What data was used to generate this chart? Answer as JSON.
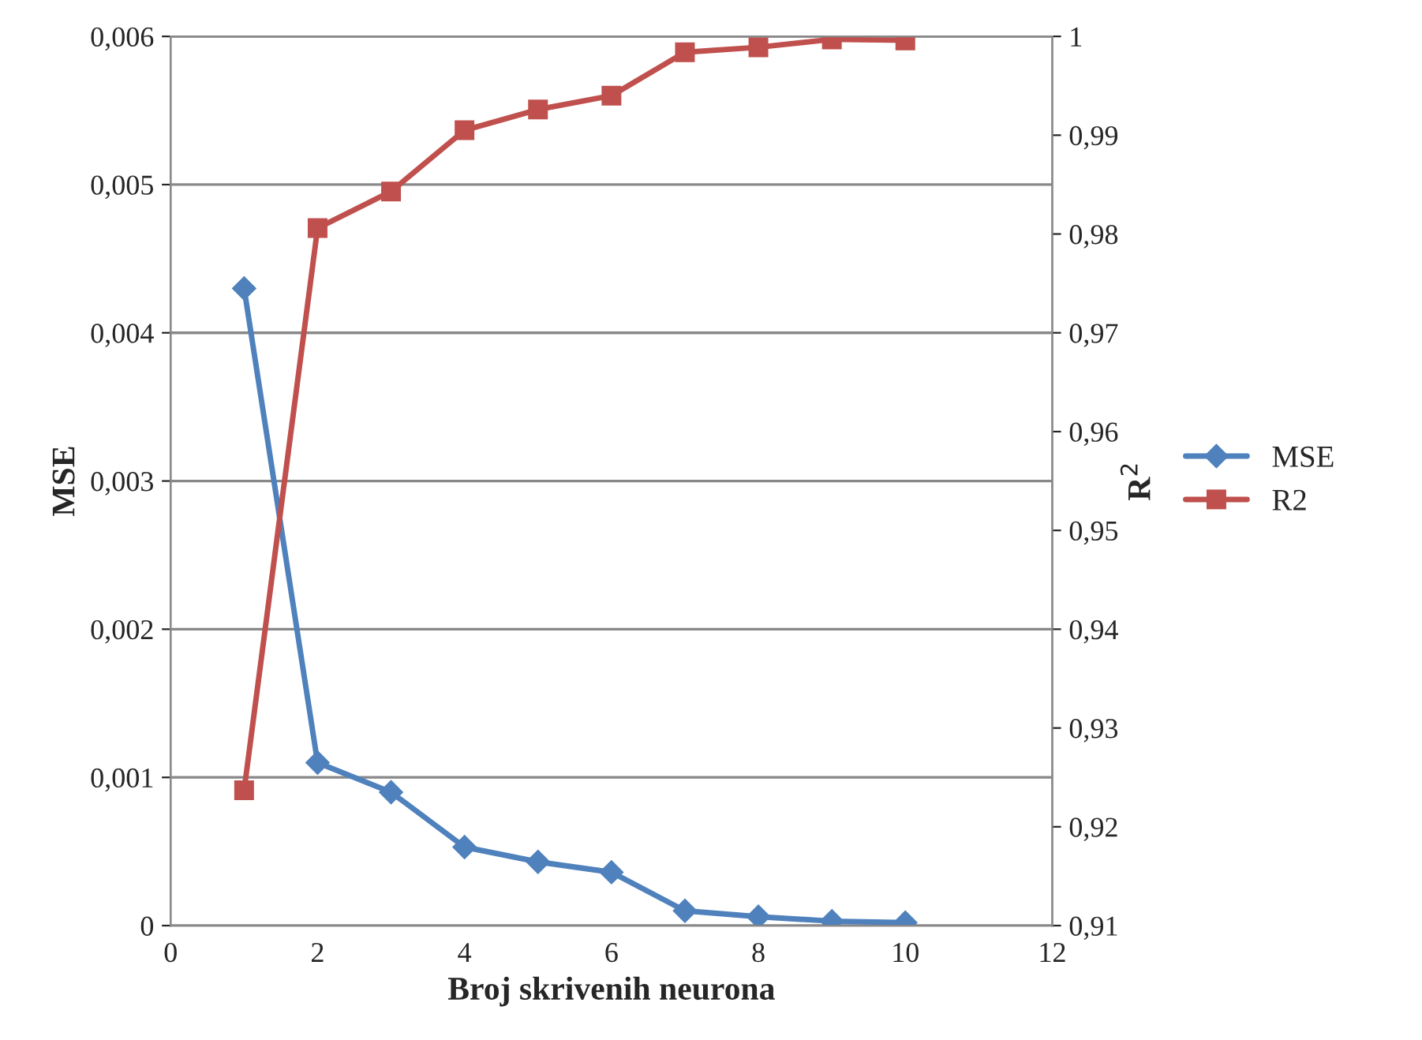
{
  "chart_data": {
    "type": "line",
    "xlabel": "Broj skrivenih neurona",
    "ylabel": "MSE",
    "y2label": "R$^{2}$",
    "x": [
      1,
      2,
      3,
      4,
      5,
      6,
      7,
      8,
      9,
      10
    ],
    "series": [
      {
        "name": "MSE",
        "color": "#4f81bd",
        "marker": "diamond",
        "values": [
          0.0043,
          0.0011,
          0.0009,
          0.00053,
          0.00043,
          0.00036,
          0.0001,
          6e-05,
          3e-05,
          2e-05
        ]
      },
      {
        "name": "R2",
        "color": "#c0504d",
        "marker": "square",
        "axis": "y2",
        "values": [
          0.9237,
          0.9806,
          0.9843,
          0.9905,
          0.9926,
          0.994,
          0.9984,
          0.9989,
          0.9997,
          0.9996
        ]
      }
    ],
    "xlim": [
      0,
      12
    ],
    "xticks": [
      0,
      2,
      4,
      6,
      8,
      10,
      12
    ],
    "ylim": [
      0,
      0.006
    ],
    "yticks": [
      0,
      {
        "value": 0.001,
        "label": "0,001"
      },
      {
        "value": 0.002,
        "label": "0,002"
      },
      {
        "value": 0.003,
        "label": "0,003"
      },
      {
        "value": 0.004,
        "label": "0,004"
      },
      {
        "value": 0.005,
        "label": "0,005"
      },
      {
        "value": 0.006,
        "label": "0,006"
      }
    ],
    "y2lim": [
      0.91,
      1
    ],
    "y2ticks": [
      {
        "value": 0.91,
        "label": "0,91"
      },
      {
        "value": 0.92,
        "label": "0,92"
      },
      {
        "value": 0.93,
        "label": "0,93"
      },
      {
        "value": 0.94,
        "label": "0,94"
      },
      {
        "value": 0.95,
        "label": "0,95"
      },
      {
        "value": 0.96,
        "label": "0,96"
      },
      {
        "value": 0.97,
        "label": "0,97"
      },
      {
        "value": 0.98,
        "label": "0,98"
      },
      {
        "value": 0.99,
        "label": "0,99"
      },
      1
    ],
    "grid": "y",
    "legend": "right",
    "line_style": "solid"
  }
}
